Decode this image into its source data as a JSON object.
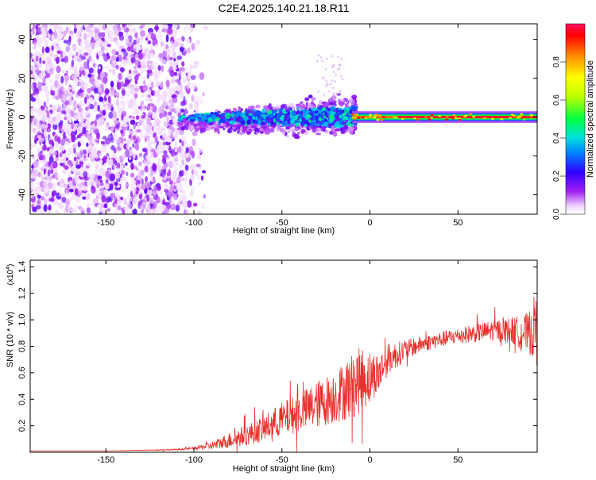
{
  "title": "C2E4.2025.140.21.18.R11",
  "chart_data": [
    {
      "type": "heatmap",
      "xlabel": "Height of straight line (km)",
      "ylabel": "Frequency (Hz)",
      "xlim": [
        -193,
        95
      ],
      "ylim": [
        -50,
        48
      ],
      "xticks": [
        -150,
        -100,
        -50,
        0,
        50
      ],
      "yticks": [
        -40,
        -20,
        0,
        20,
        40
      ],
      "colorbar": {
        "label": "Normalized spectral amplitude",
        "range": [
          0,
          1
        ],
        "ticks": [
          "0.0",
          "0.2",
          "0.4",
          "0.6",
          "0.8"
        ],
        "tick_values": [
          0,
          0.2,
          0.4,
          0.6,
          0.8
        ]
      },
      "regions": [
        {
          "x_from": -193,
          "x_to": -95,
          "freq_spread": [
            -50,
            48
          ],
          "amplitude": "0.0-0.15 (noise)"
        },
        {
          "x_from": -105,
          "x_to": -10,
          "freq_center": 0,
          "freq_spread": [
            -12,
            12
          ],
          "amplitude": "0.1-0.45"
        },
        {
          "x_from": -10,
          "x_to": 95,
          "freq_center": 0,
          "freq_spread": [
            -2,
            2
          ],
          "amplitude": "0.9-1.0 (peak)"
        }
      ]
    },
    {
      "type": "line",
      "xlabel": "Height of straight line (km)",
      "ylabel": "SNR (10 * v/v)",
      "ylabel_scale": "(x10",
      "ylabel_scale_exp": "4",
      "ylabel_scale_close": ")",
      "xlim": [
        -193,
        95
      ],
      "ylim": [
        0,
        1.45
      ],
      "xticks": [
        -150,
        -100,
        -50,
        0,
        50
      ],
      "yticks": [
        "0.2",
        "0.4",
        "0.6",
        "0.8",
        "1.0",
        "1.2",
        "1.4"
      ],
      "ytick_values": [
        0.2,
        0.4,
        0.6,
        0.8,
        1.0,
        1.2,
        1.4
      ],
      "series": [
        {
          "name": "SNR",
          "color": "#e8302c",
          "x": [
            -193,
            -150,
            -110,
            -100,
            -90,
            -80,
            -70,
            -60,
            -50,
            -40,
            -30,
            -20,
            -10,
            -5,
            0,
            5,
            10,
            20,
            30,
            40,
            50,
            60,
            70,
            80,
            90,
            95
          ],
          "y": [
            0.01,
            0.01,
            0.02,
            0.03,
            0.05,
            0.09,
            0.13,
            0.18,
            0.25,
            0.3,
            0.36,
            0.42,
            0.5,
            0.55,
            0.57,
            0.6,
            0.7,
            0.77,
            0.82,
            0.85,
            0.88,
            0.9,
            0.92,
            0.92,
            0.9,
            0.95
          ],
          "noise_amplitude": [
            0,
            0,
            0.005,
            0.01,
            0.03,
            0.06,
            0.08,
            0.1,
            0.13,
            0.15,
            0.18,
            0.2,
            0.25,
            0.25,
            0.2,
            0.15,
            0.12,
            0.08,
            0.06,
            0.06,
            0.06,
            0.07,
            0.08,
            0.1,
            0.15,
            0.3
          ]
        }
      ]
    }
  ]
}
